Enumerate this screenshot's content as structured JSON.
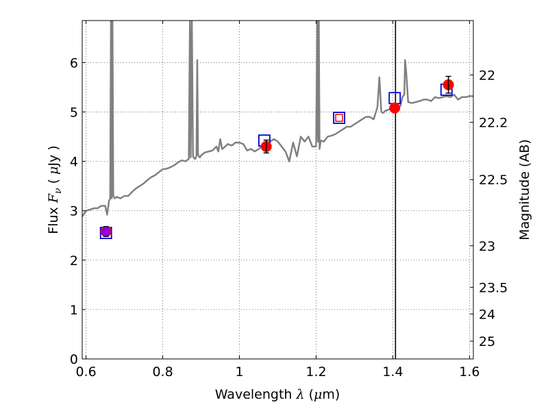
{
  "chart_data": {
    "type": "line",
    "xlabel_parts": [
      "Wavelength ",
      "λ",
      " (",
      "μ",
      "m)"
    ],
    "ylabel_parts": [
      "Flux ",
      "F",
      "ν",
      " ( ",
      "μ",
      "Jy )"
    ],
    "y2label": "Magnitude (AB)",
    "xlim": [
      0.59,
      1.61
    ],
    "ylim": [
      0,
      6.85
    ],
    "grid": true,
    "x_ticks": [
      0.6,
      0.8,
      1.0,
      1.2,
      1.4,
      1.6
    ],
    "x_tick_labels": [
      "0.6",
      "0.8",
      "1",
      "1.2",
      "1.4",
      "1.6"
    ],
    "y_ticks": [
      0,
      1,
      2,
      3,
      4,
      5,
      6
    ],
    "y_tick_labels": [
      "0",
      "1",
      "2",
      "3",
      "4",
      "5",
      "6"
    ],
    "y2_ticks": [
      {
        "label": "22",
        "flux": 5.75
      },
      {
        "label": "22.2",
        "flux": 4.79
      },
      {
        "label": "22.5",
        "flux": 3.63
      },
      {
        "label": "23",
        "flux": 2.29
      },
      {
        "label": "23.5",
        "flux": 1.45
      },
      {
        "label": "24",
        "flux": 0.91
      },
      {
        "label": "25",
        "flux": 0.36
      }
    ],
    "vertical_line_x": 1.407,
    "colors": {
      "spectrum": "#808080",
      "observed": "#ff0000",
      "model_box": "#0000cc",
      "open_marker": "#ff0000",
      "purple_marker": "#9400d3",
      "grid": "#555555"
    },
    "series": [
      {
        "kind": "spectrum",
        "x": [
          0.59,
          0.6,
          0.61,
          0.62,
          0.63,
          0.64,
          0.65,
          0.655,
          0.66,
          0.663,
          0.665,
          0.667,
          0.669,
          0.671,
          0.675,
          0.68,
          0.69,
          0.7,
          0.71,
          0.72,
          0.73,
          0.74,
          0.75,
          0.76,
          0.77,
          0.78,
          0.79,
          0.8,
          0.81,
          0.82,
          0.83,
          0.84,
          0.85,
          0.86,
          0.868,
          0.871,
          0.873,
          0.876,
          0.879,
          0.882,
          0.885,
          0.888,
          0.89,
          0.892,
          0.894,
          0.897,
          0.9,
          0.91,
          0.92,
          0.93,
          0.94,
          0.945,
          0.95,
          0.955,
          0.96,
          0.97,
          0.98,
          0.99,
          1.0,
          1.01,
          1.02,
          1.03,
          1.04,
          1.05,
          1.06,
          1.07,
          1.08,
          1.09,
          1.1,
          1.11,
          1.12,
          1.13,
          1.14,
          1.15,
          1.16,
          1.17,
          1.18,
          1.19,
          1.2,
          1.203,
          1.205,
          1.207,
          1.209,
          1.212,
          1.22,
          1.23,
          1.24,
          1.25,
          1.26,
          1.27,
          1.28,
          1.29,
          1.3,
          1.31,
          1.32,
          1.33,
          1.34,
          1.35,
          1.36,
          1.365,
          1.37,
          1.375,
          1.38,
          1.39,
          1.4,
          1.41,
          1.42,
          1.425,
          1.43,
          1.432,
          1.435,
          1.44,
          1.45,
          1.46,
          1.47,
          1.48,
          1.49,
          1.5,
          1.51,
          1.52,
          1.53,
          1.54,
          1.55,
          1.56,
          1.57,
          1.58,
          1.59,
          1.6,
          1.61
        ],
        "y": [
          2.88,
          3.0,
          3.02,
          3.05,
          3.05,
          3.1,
          3.1,
          2.92,
          3.2,
          3.25,
          6.85,
          3.25,
          6.85,
          3.3,
          3.25,
          3.28,
          3.25,
          3.3,
          3.3,
          3.38,
          3.45,
          3.5,
          3.55,
          3.62,
          3.68,
          3.72,
          3.78,
          3.84,
          3.85,
          3.88,
          3.92,
          3.98,
          4.02,
          4.0,
          4.05,
          6.85,
          4.08,
          6.85,
          4.1,
          4.06,
          4.05,
          4.12,
          6.05,
          4.15,
          4.1,
          4.08,
          4.12,
          4.18,
          4.2,
          4.22,
          4.3,
          4.2,
          4.45,
          4.25,
          4.28,
          4.35,
          4.32,
          4.38,
          4.38,
          4.35,
          4.22,
          4.25,
          4.2,
          4.25,
          4.3,
          4.35,
          4.4,
          4.45,
          4.4,
          4.3,
          4.2,
          4.0,
          4.38,
          4.1,
          4.5,
          4.4,
          4.5,
          4.3,
          4.3,
          6.85,
          4.4,
          6.85,
          4.25,
          4.42,
          4.4,
          4.5,
          4.52,
          4.55,
          4.6,
          4.65,
          4.7,
          4.7,
          4.75,
          4.8,
          4.85,
          4.9,
          4.9,
          4.85,
          5.1,
          5.7,
          5.0,
          4.98,
          5.02,
          5.05,
          5.08,
          5.1,
          5.12,
          5.3,
          5.35,
          6.05,
          5.8,
          5.2,
          5.18,
          5.2,
          5.22,
          5.25,
          5.25,
          5.22,
          5.3,
          5.28,
          5.3,
          5.32,
          5.3,
          5.35,
          5.25,
          5.3,
          5.3,
          5.32,
          5.32
        ]
      },
      {
        "kind": "observed",
        "x": [
          0.652,
          1.07,
          1.405,
          1.545
        ],
        "y": [
          2.58,
          4.3,
          5.08,
          5.55
        ],
        "err": [
          0.1,
          0.13,
          0.0,
          0.17
        ]
      },
      {
        "kind": "model_box",
        "x": [
          0.652,
          1.065,
          1.26,
          1.405,
          1.54
        ],
        "y": [
          2.55,
          4.42,
          4.88,
          5.28,
          5.45
        ]
      },
      {
        "kind": "open_marker",
        "x": [
          1.26
        ],
        "y": [
          4.88
        ]
      },
      {
        "kind": "purple_marker",
        "x": [
          0.652
        ],
        "y": [
          2.58
        ]
      }
    ]
  }
}
